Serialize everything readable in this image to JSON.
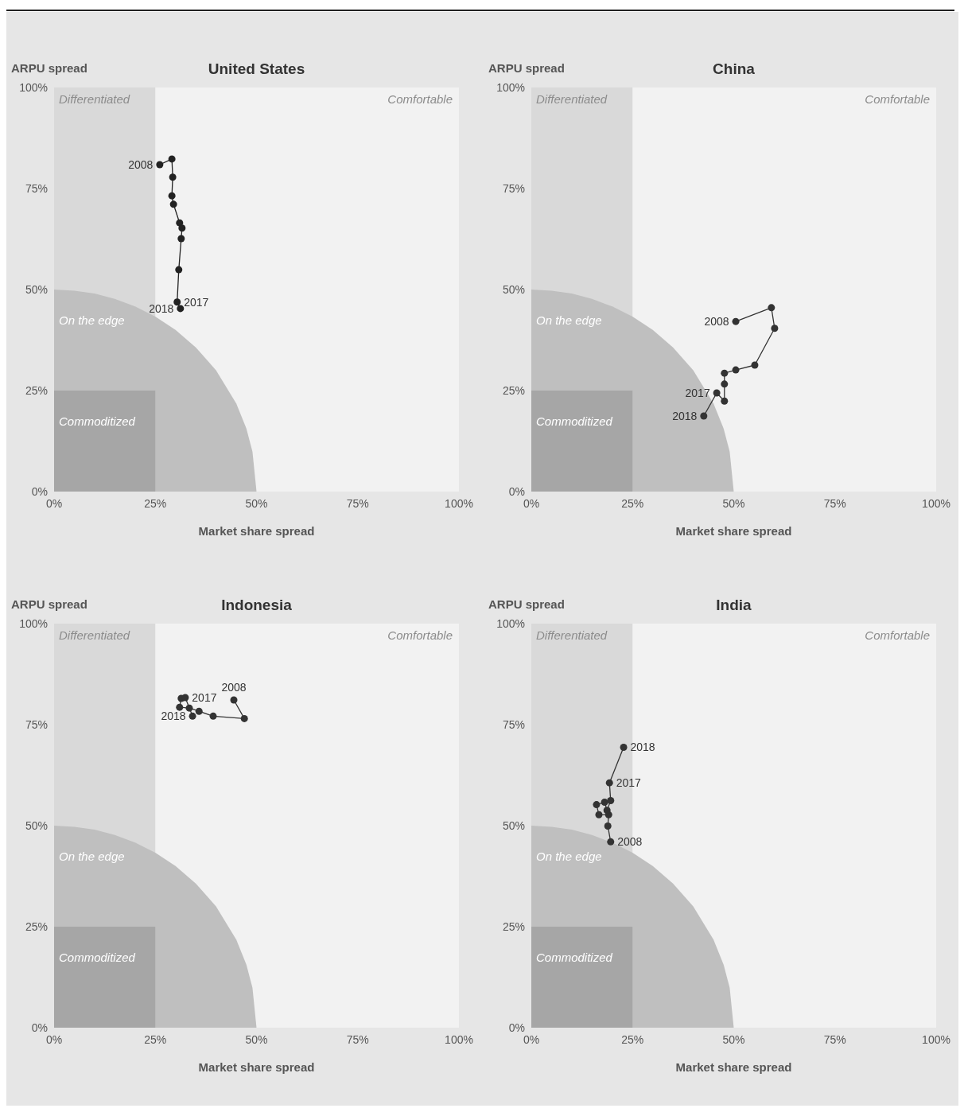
{
  "chart_data": [
    {
      "type": "line",
      "title": "United States",
      "xlabel": "Market share spread",
      "ylabel": "ARPU spread",
      "xlim": [
        0,
        100
      ],
      "ylim": [
        0,
        100
      ],
      "xticks": [
        {
          "value": 0,
          "label": "0%"
        },
        {
          "value": 25,
          "label": "25%"
        },
        {
          "value": 50,
          "label": "50%"
        },
        {
          "value": 75,
          "label": "75%"
        },
        {
          "value": 100,
          "label": "100%"
        }
      ],
      "yticks": [
        {
          "value": 0,
          "label": "0%"
        },
        {
          "value": 25,
          "label": "25%"
        },
        {
          "value": 50,
          "label": "50%"
        },
        {
          "value": 75,
          "label": "75%"
        },
        {
          "value": 100,
          "label": "100%"
        }
      ],
      "grid": false,
      "bands": [
        {
          "axis": "x",
          "from": 0,
          "to": 25,
          "label": "Differentiated",
          "color": "#d9d9d9"
        }
      ],
      "series": [
        {
          "type": "area",
          "color": "#bfbfbf",
          "x": [
            0,
            5,
            10,
            15,
            20,
            25,
            30,
            35,
            40,
            45,
            47.5,
            49,
            50
          ],
          "values": [
            50,
            49.7,
            49,
            47.7,
            45.8,
            43.3,
            40,
            35.7,
            30,
            21.8,
            15.6,
            9.9,
            0
          ]
        },
        {
          "type": "area",
          "color": "#a6a6a6",
          "x": [
            0,
            25
          ],
          "values": [
            25,
            25
          ]
        },
        {
          "color": "#222222",
          "marker": "circle",
          "line_style": "solid",
          "x": [
            26.1,
            29.1,
            29.3,
            29.1,
            29.5,
            31.0,
            31.6,
            31.4,
            30.8,
            30.4,
            31.2
          ],
          "values": [
            80.9,
            82.3,
            77.8,
            73.2,
            71.1,
            66.5,
            65.2,
            62.6,
            54.9,
            46.9,
            45.3
          ]
        }
      ],
      "annotations": [
        "Comfortable",
        "On the edge",
        "Commoditized",
        {
          "text": "2008",
          "x": 26.1,
          "y": 80.9
        },
        {
          "text": "2017",
          "x": 30.4,
          "y": 46.9
        },
        {
          "text": "2018",
          "x": 31.2,
          "y": 45.3
        }
      ]
    },
    {
      "type": "line",
      "title": "China",
      "xlabel": "Market share spread",
      "ylabel": "ARPU spread",
      "xlim": [
        0,
        100
      ],
      "ylim": [
        0,
        100
      ],
      "xticks": [
        {
          "value": 0,
          "label": "0%"
        },
        {
          "value": 25,
          "label": "25%"
        },
        {
          "value": 50,
          "label": "50%"
        },
        {
          "value": 75,
          "label": "75%"
        },
        {
          "value": 100,
          "label": "100%"
        }
      ],
      "yticks": [
        {
          "value": 0,
          "label": "0%"
        },
        {
          "value": 25,
          "label": "25%"
        },
        {
          "value": 50,
          "label": "50%"
        },
        {
          "value": 75,
          "label": "75%"
        },
        {
          "value": 100,
          "label": "100%"
        }
      ],
      "grid": false,
      "bands": [
        {
          "axis": "x",
          "from": 0,
          "to": 25,
          "label": "Differentiated",
          "color": "#d9d9d9"
        }
      ],
      "series": [
        {
          "type": "area",
          "color": "#bfbfbf",
          "x": [
            0,
            5,
            10,
            15,
            20,
            25,
            30,
            35,
            40,
            45,
            47.5,
            49,
            50
          ],
          "values": [
            50,
            49.7,
            49,
            47.7,
            45.8,
            43.3,
            40,
            35.7,
            30,
            21.8,
            15.6,
            9.9,
            0
          ]
        },
        {
          "type": "area",
          "color": "#a6a6a6",
          "x": [
            0,
            25
          ],
          "values": [
            25,
            25
          ]
        },
        {
          "color": "#333333",
          "marker": "circle",
          "line_style": "solid",
          "x": [
            50.5,
            59.3,
            60.1,
            55.2,
            50.5,
            47.7,
            47.7,
            47.7,
            45.8,
            42.6
          ],
          "values": [
            42.1,
            45.5,
            40.4,
            31.3,
            30.1,
            29.3,
            26.6,
            22.4,
            24.4,
            18.7
          ]
        }
      ],
      "annotations": [
        "Comfortable",
        "On the edge",
        "Commoditized",
        {
          "text": "2008",
          "x": 50.5,
          "y": 42.1
        },
        {
          "text": "2017",
          "x": 45.8,
          "y": 24.4
        },
        {
          "text": "2018",
          "x": 42.6,
          "y": 18.7
        }
      ]
    },
    {
      "type": "line",
      "title": "Indonesia",
      "xlabel": "Market share spread",
      "ylabel": "ARPU spread",
      "xlim": [
        0,
        100
      ],
      "ylim": [
        0,
        100
      ],
      "xticks": [
        {
          "value": 0,
          "label": "0%"
        },
        {
          "value": 25,
          "label": "25%"
        },
        {
          "value": 50,
          "label": "50%"
        },
        {
          "value": 75,
          "label": "75%"
        },
        {
          "value": 100,
          "label": "100%"
        }
      ],
      "yticks": [
        {
          "value": 0,
          "label": "0%"
        },
        {
          "value": 25,
          "label": "25%"
        },
        {
          "value": 50,
          "label": "50%"
        },
        {
          "value": 75,
          "label": "75%"
        },
        {
          "value": 100,
          "label": "100%"
        }
      ],
      "grid": false,
      "bands": [
        {
          "axis": "x",
          "from": 0,
          "to": 25,
          "label": "Differentiated",
          "color": "#d9d9d9"
        }
      ],
      "series": [
        {
          "type": "area",
          "color": "#bfbfbf",
          "x": [
            0,
            5,
            10,
            15,
            20,
            25,
            30,
            35,
            40,
            45,
            47.5,
            49,
            50
          ],
          "values": [
            50,
            49.7,
            49,
            47.7,
            45.8,
            43.3,
            40,
            35.7,
            30,
            21.8,
            15.6,
            9.9,
            0
          ]
        },
        {
          "type": "area",
          "color": "#a6a6a6",
          "x": [
            0,
            25
          ],
          "values": [
            25,
            25
          ]
        },
        {
          "color": "#333333",
          "marker": "circle",
          "line_style": "solid",
          "x": [
            44.4,
            47.0,
            39.3,
            35.8,
            33.4,
            31.0,
            31.4,
            32.4,
            34.2
          ],
          "values": [
            81.1,
            76.5,
            77.1,
            78.3,
            79.1,
            79.3,
            81.5,
            81.7,
            77.1
          ]
        }
      ],
      "annotations": [
        "Comfortable",
        "On the edge",
        "Commoditized",
        {
          "text": "2017",
          "x": 32.4,
          "y": 81.7
        },
        {
          "text": "2008",
          "x": 44.4,
          "y": 81.1
        },
        {
          "text": "2018",
          "x": 34.2,
          "y": 77.1
        }
      ]
    },
    {
      "type": "line",
      "title": "India",
      "xlabel": "Market share spread",
      "ylabel": "ARPU spread",
      "xlim": [
        0,
        100
      ],
      "ylim": [
        0,
        100
      ],
      "xticks": [
        {
          "value": 0,
          "label": "0%"
        },
        {
          "value": 25,
          "label": "25%"
        },
        {
          "value": 50,
          "label": "50%"
        },
        {
          "value": 75,
          "label": "75%"
        },
        {
          "value": 100,
          "label": "100%"
        }
      ],
      "yticks": [
        {
          "value": 0,
          "label": "0%"
        },
        {
          "value": 25,
          "label": "25%"
        },
        {
          "value": 50,
          "label": "50%"
        },
        {
          "value": 75,
          "label": "75%"
        },
        {
          "value": 100,
          "label": "100%"
        }
      ],
      "grid": false,
      "bands": [
        {
          "axis": "x",
          "from": 0,
          "to": 25,
          "label": "Differentiated",
          "color": "#d9d9d9"
        }
      ],
      "series": [
        {
          "type": "area",
          "color": "#bfbfbf",
          "x": [
            0,
            5,
            10,
            15,
            20,
            25,
            30,
            35,
            40,
            45,
            47.5,
            49,
            50
          ],
          "values": [
            50,
            49.7,
            49,
            47.7,
            45.8,
            43.3,
            40,
            35.7,
            30,
            21.8,
            15.6,
            9.9,
            0
          ]
        },
        {
          "type": "area",
          "color": "#a6a6a6",
          "x": [
            0,
            25
          ],
          "values": [
            25,
            25
          ]
        },
        {
          "color": "#333333",
          "marker": "circle",
          "line_style": "solid",
          "x": [
            19.6,
            18.9,
            19.1,
            16.7,
            16.1,
            18.1,
            18.7,
            19.6,
            19.3,
            22.8
          ],
          "values": [
            46.0,
            49.9,
            52.7,
            52.7,
            55.2,
            55.8,
            53.8,
            56.2,
            60.6,
            69.4
          ]
        }
      ],
      "annotations": [
        "Comfortable",
        "On the edge",
        "Commoditized",
        {
          "text": "2018",
          "x": 22.8,
          "y": 69.4
        },
        {
          "text": "2017",
          "x": 19.3,
          "y": 60.6
        },
        {
          "text": "2008",
          "x": 19.6,
          "y": 46.0
        }
      ]
    }
  ]
}
